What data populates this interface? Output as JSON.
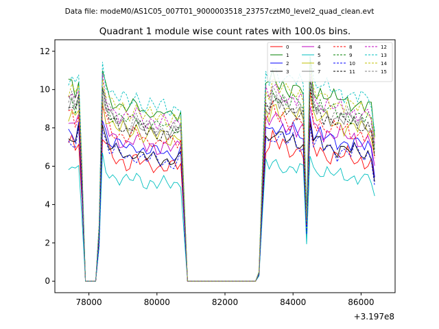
{
  "chart_data": {
    "type": "line",
    "suptitle": "Data file: modeM0/AS1C05_007T01_9000003518_23757cztM0_level2_quad_clean.evt",
    "title": "Quadrant 1 module wise count rates with 100.0s bins.",
    "xlabel": "",
    "ylabel": "",
    "x_offset_label": "+3.197e8",
    "xlim": [
      77000,
      87000
    ],
    "ylim": [
      -0.6,
      12.6
    ],
    "xticks": [
      78000,
      80000,
      82000,
      84000,
      86000
    ],
    "xtick_labels": [
      "78000",
      "80000",
      "82000",
      "84000",
      "86000"
    ],
    "yticks": [
      0,
      2,
      4,
      6,
      8,
      10,
      12
    ],
    "ytick_labels": [
      "0",
      "2",
      "4",
      "6",
      "8",
      "10",
      "12"
    ],
    "legend_position": "top-right",
    "x_start": 77400,
    "x_step": 100,
    "series": [
      {
        "name": "0",
        "color": "#ff0000",
        "style": "solid",
        "level": 6.6,
        "amp": 0.55,
        "phase": 0.3
      },
      {
        "name": "1",
        "color": "#008000",
        "style": "solid",
        "level": 9.6,
        "amp": 0.45,
        "phase": 1.1
      },
      {
        "name": "2",
        "color": "#0000ff",
        "style": "solid",
        "level": 7.4,
        "amp": 0.5,
        "phase": 2.0
      },
      {
        "name": "3",
        "color": "#000000",
        "style": "solid",
        "level": 7.0,
        "amp": 0.45,
        "phase": 2.7
      },
      {
        "name": "4",
        "color": "#bf00bf",
        "style": "solid",
        "level": 7.7,
        "amp": 0.5,
        "phase": 3.5
      },
      {
        "name": "5",
        "color": "#00bfbf",
        "style": "solid",
        "level": 5.6,
        "amp": 0.4,
        "phase": 4.2
      },
      {
        "name": "6",
        "color": "#bfbf00",
        "style": "solid",
        "level": 8.3,
        "amp": 0.5,
        "phase": 5.0
      },
      {
        "name": "7",
        "color": "#808080",
        "style": "solid",
        "level": 8.6,
        "amp": 0.45,
        "phase": 5.8
      },
      {
        "name": "8",
        "color": "#ff0000",
        "style": "dashed",
        "level": 8.0,
        "amp": 0.5,
        "phase": 0.8
      },
      {
        "name": "9",
        "color": "#008000",
        "style": "dashed",
        "level": 8.9,
        "amp": 0.45,
        "phase": 1.6
      },
      {
        "name": "10",
        "color": "#0000ff",
        "style": "dashed",
        "level": 6.9,
        "amp": 0.55,
        "phase": 2.4
      },
      {
        "name": "11",
        "color": "#000000",
        "style": "dashed",
        "level": 8.5,
        "amp": 0.45,
        "phase": 3.2
      },
      {
        "name": "12",
        "color": "#bf00bf",
        "style": "dashed",
        "level": 9.1,
        "amp": 0.45,
        "phase": 4.0
      },
      {
        "name": "13",
        "color": "#00bfbf",
        "style": "dashed",
        "level": 10.0,
        "amp": 0.45,
        "phase": 4.8
      },
      {
        "name": "14",
        "color": "#bfbf00",
        "style": "dashed",
        "level": 9.4,
        "amp": 0.45,
        "phase": 5.5
      },
      {
        "name": "15",
        "color": "#808080",
        "style": "dashed",
        "level": 8.8,
        "amp": 0.45,
        "phase": 6.1
      }
    ],
    "profile": [
      1.06,
      1.08,
      1.03,
      1.1,
      0.6,
      0.0,
      0.0,
      0.0,
      0.0,
      0.3,
      1.15,
      1.05,
      1.0,
      0.98,
      0.97,
      0.95,
      0.96,
      0.94,
      0.93,
      0.95,
      0.97,
      0.94,
      0.92,
      0.91,
      0.93,
      0.92,
      0.9,
      0.91,
      0.92,
      0.9,
      0.89,
      0.91,
      0.9,
      0.92,
      0.45,
      0.0,
      0.0,
      0.0,
      0.0,
      0.0,
      0.0,
      0.0,
      0.0,
      0.0,
      0.0,
      0.0,
      0.0,
      0.0,
      0.0,
      0.0,
      0.0,
      0.0,
      0.0,
      0.0,
      0.0,
      0.0,
      0.05,
      0.6,
      1.08,
      1.05,
      1.12,
      1.1,
      1.06,
      1.08,
      1.05,
      1.04,
      1.06,
      1.03,
      1.05,
      1.02,
      0.35,
      1.2,
      1.05,
      1.02,
      1.04,
      1.0,
      1.02,
      0.99,
      1.0,
      0.98,
      1.0,
      0.97,
      0.99,
      0.96,
      0.98,
      0.95,
      0.97,
      0.94,
      0.96,
      0.93,
      0.78
    ]
  }
}
